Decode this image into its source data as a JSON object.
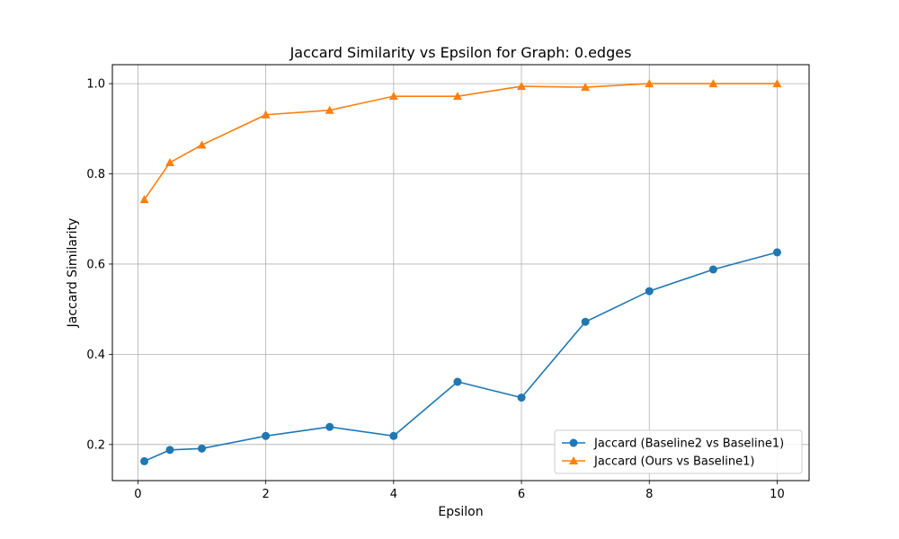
{
  "chart_data": {
    "type": "line",
    "title": "Jaccard Similarity vs Epsilon for Graph: 0.edges",
    "xlabel": "Epsilon",
    "ylabel": "Jaccard Similarity",
    "xlim": [
      -0.4,
      10.5
    ],
    "ylim": [
      0.12,
      1.042
    ],
    "xticks": [
      0,
      2,
      4,
      6,
      8,
      10
    ],
    "yticks": [
      0.2,
      0.4,
      0.6,
      0.8,
      1.0
    ],
    "xtick_labels": [
      "0",
      "2",
      "4",
      "6",
      "8",
      "10"
    ],
    "ytick_labels": [
      "0.2",
      "0.4",
      "0.6",
      "0.8",
      "1.0"
    ],
    "grid": true,
    "legend_position": "lower-right",
    "x": [
      0.1,
      0.5,
      1,
      2,
      3,
      4,
      5,
      6,
      7,
      8,
      9,
      10
    ],
    "series": [
      {
        "name": "Jaccard (Baseline2 vs Baseline1)",
        "marker": "circle",
        "color": "#1f77b4",
        "values": [
          0.163,
          0.188,
          0.191,
          0.219,
          0.239,
          0.219,
          0.339,
          0.304,
          0.472,
          0.54,
          0.588,
          0.626
        ]
      },
      {
        "name": "Jaccard (Ours vs Baseline1)",
        "marker": "triangle",
        "color": "#ff7f0e",
        "values": [
          0.743,
          0.825,
          0.864,
          0.931,
          0.941,
          0.972,
          0.972,
          0.994,
          0.992,
          1.0,
          1.0,
          1.0
        ]
      }
    ]
  }
}
